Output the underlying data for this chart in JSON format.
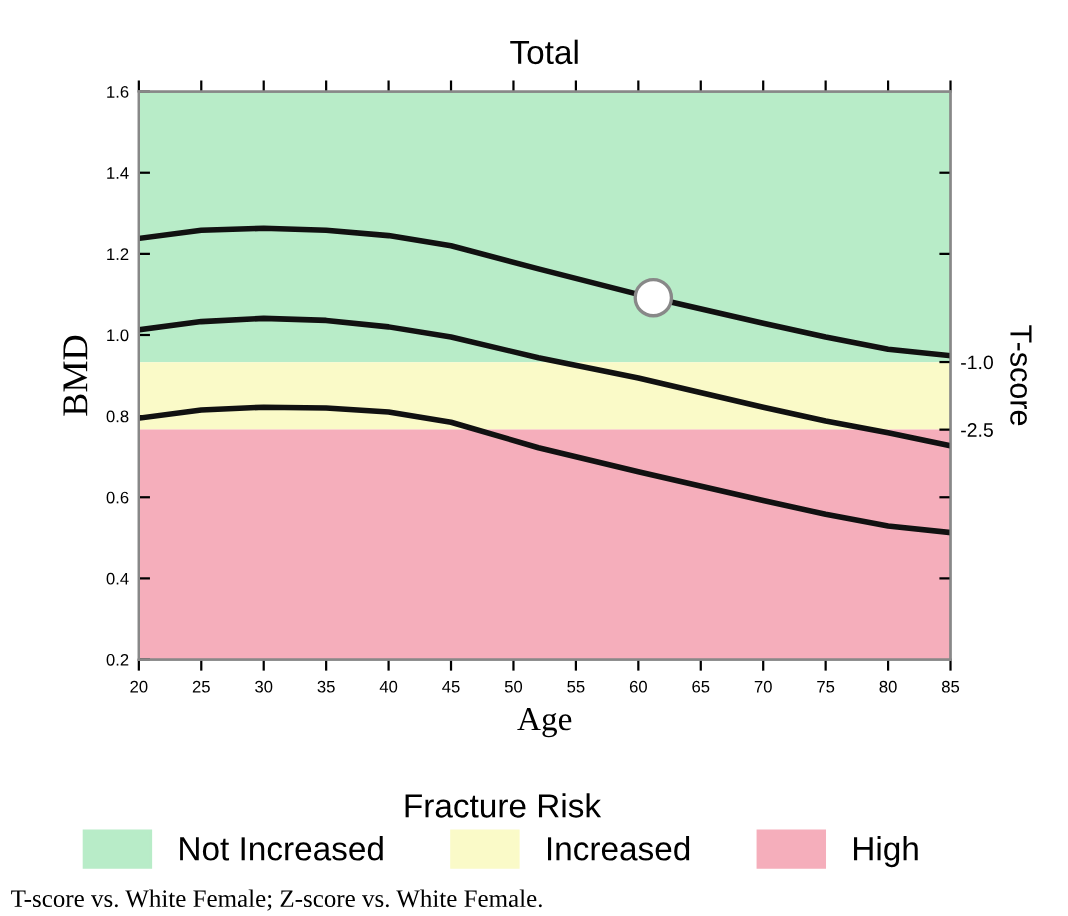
{
  "chart_data": {
    "type": "line",
    "title": "Total",
    "xlabel": "Age",
    "ylabel": "BMD",
    "y2label": "T-score",
    "legend_title": "Fracture Risk",
    "legend": "bottom",
    "grid": false,
    "marker": "none",
    "line_style": "solid",
    "xlim": [
      20,
      85
    ],
    "xticks": [
      20,
      25,
      30,
      35,
      40,
      45,
      50,
      55,
      60,
      65,
      70,
      75,
      80,
      85
    ],
    "ylim": [
      0.2,
      1.6
    ],
    "yticks": [
      0.2,
      0.4,
      0.6,
      0.8,
      {
        "value": 1.0,
        "label": "1.0"
      },
      1.2,
      1.4,
      1.6
    ],
    "y2lim": [
      -7.6,
      5.0
    ],
    "y2ticks": [
      {
        "value": -1.0,
        "label": "-1.0"
      },
      {
        "value": -2.5,
        "label": "-2.5"
      },
      {
        "value": 3.2,
        "label": null
      },
      {
        "value": 1.4,
        "label": null
      },
      {
        "value": -4.0,
        "label": null
      },
      {
        "value": -5.8,
        "label": null
      }
    ],
    "bands": [
      {
        "axis": "y",
        "from": 0.933,
        "to": 1.6,
        "label": "Not Increased",
        "color": "#b8ecc8"
      },
      {
        "axis": "y",
        "from": 0.767,
        "to": 0.933,
        "label": "Increased",
        "color": "#fafac8"
      },
      {
        "axis": "y",
        "from": 0.2,
        "to": 0.767,
        "label": "High",
        "color": "#f5aebb"
      }
    ],
    "series": [
      {
        "color": "#111111",
        "x": [
          20,
          25,
          30,
          35,
          40,
          45,
          52,
          60,
          70,
          75,
          80,
          85
        ],
        "values": [
          1.238,
          1.258,
          1.263,
          1.258,
          1.245,
          1.22,
          1.163,
          1.1,
          1.029,
          0.995,
          0.965,
          0.949
        ]
      },
      {
        "color": "#111111",
        "x": [
          20,
          25,
          30,
          35,
          40,
          45,
          52,
          60,
          70,
          75,
          80,
          85
        ],
        "values": [
          1.013,
          1.033,
          1.041,
          1.036,
          1.02,
          0.995,
          0.944,
          0.894,
          0.822,
          0.788,
          0.759,
          0.727
        ]
      },
      {
        "color": "#111111",
        "x": [
          20,
          25,
          30,
          35,
          40,
          45,
          52,
          60,
          70,
          75,
          80,
          85
        ],
        "values": [
          0.795,
          0.815,
          0.822,
          0.82,
          0.81,
          0.785,
          0.722,
          0.663,
          0.592,
          0.558,
          0.529,
          0.513
        ]
      },
      {
        "type": "scatter",
        "marker": "circle",
        "color": "#ffffff",
        "x": [
          61.2
        ],
        "values": [
          1.092
        ]
      }
    ],
    "annotations": [
      "T-score vs. White Female; Z-score vs. White Female."
    ]
  }
}
